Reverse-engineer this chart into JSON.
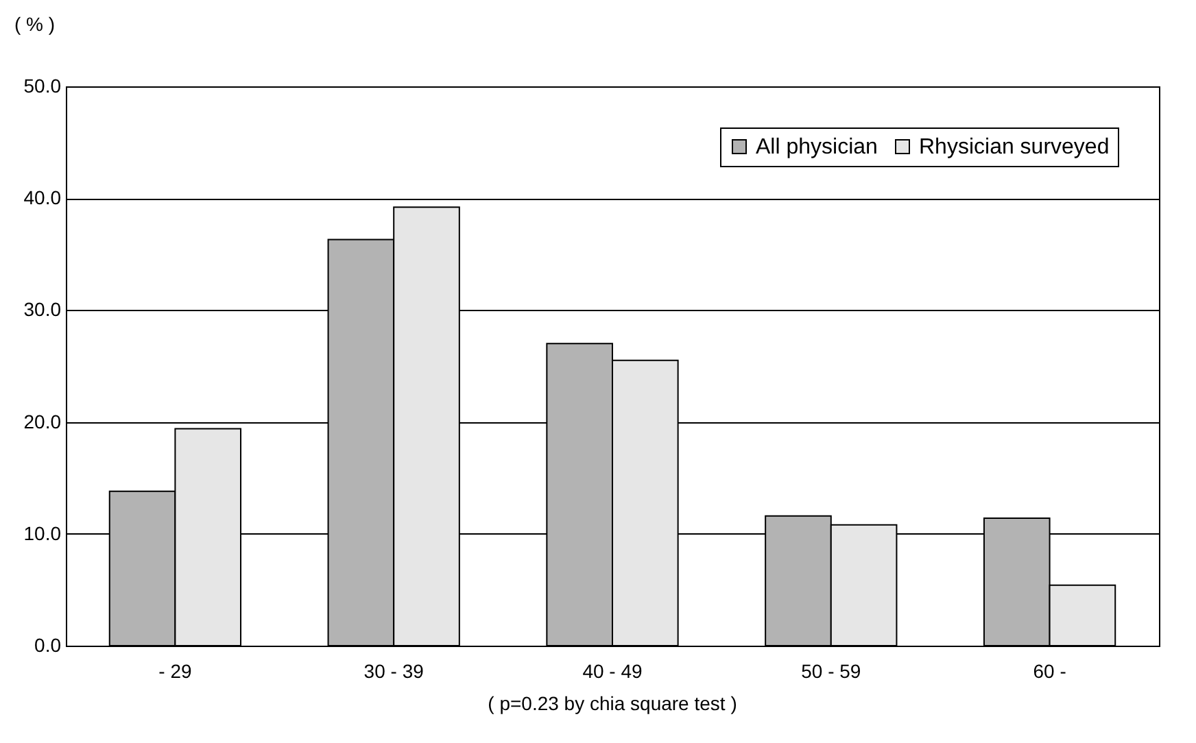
{
  "chart_data": {
    "type": "bar",
    "ylabel": "( % )",
    "categories": [
      "- 29",
      "30 - 39",
      "40 - 49",
      "50 - 59",
      "60 -"
    ],
    "series": [
      {
        "name": "All physician",
        "color": "#b3b3b3",
        "values": [
          13.8,
          36.3,
          27.0,
          11.6,
          11.4
        ]
      },
      {
        "name": "Rhysician surveyed",
        "color": "#e6e6e6",
        "values": [
          19.4,
          39.2,
          25.5,
          10.8,
          5.4
        ]
      }
    ],
    "ylim": [
      0,
      50
    ],
    "yticks": [
      {
        "value": 0,
        "label": "0.0"
      },
      {
        "value": 10,
        "label": "10.0"
      },
      {
        "value": 20,
        "label": "20.0"
      },
      {
        "value": 30,
        "label": "30.0"
      },
      {
        "value": 40,
        "label": "40.0"
      },
      {
        "value": 50,
        "label": "50.0"
      }
    ],
    "grid": "y",
    "legend": "top right",
    "annotations": [
      "( p=0.23 by chia square test )"
    ]
  }
}
